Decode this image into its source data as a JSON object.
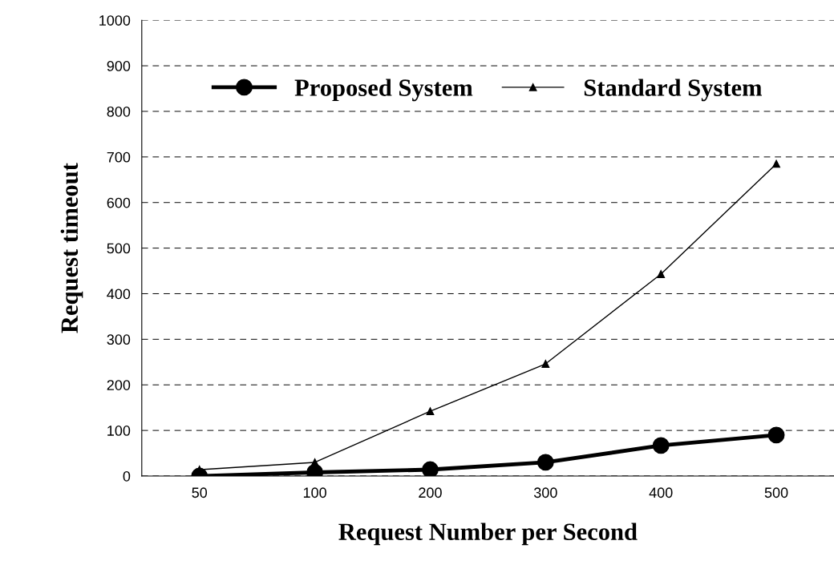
{
  "chart_data": {
    "type": "line",
    "xlabel": "Request Number per Second",
    "ylabel": "Request timeout",
    "categories": [
      "50",
      "100",
      "200",
      "300",
      "400",
      "500"
    ],
    "series": [
      {
        "name": "Proposed System",
        "color": "#000000",
        "marker": "circle",
        "values": [
          0,
          8,
          14,
          30,
          67,
          90
        ]
      },
      {
        "name": "Standard System",
        "color": "#000000",
        "marker": "triangle",
        "values": [
          14,
          30,
          142,
          246,
          443,
          685
        ]
      }
    ],
    "ylim": [
      0,
      1000
    ],
    "yticks": [
      0,
      100,
      200,
      300,
      400,
      500,
      600,
      700,
      800,
      900,
      1000
    ],
    "grid": "y",
    "legend": "top",
    "line_style": "solid"
  }
}
